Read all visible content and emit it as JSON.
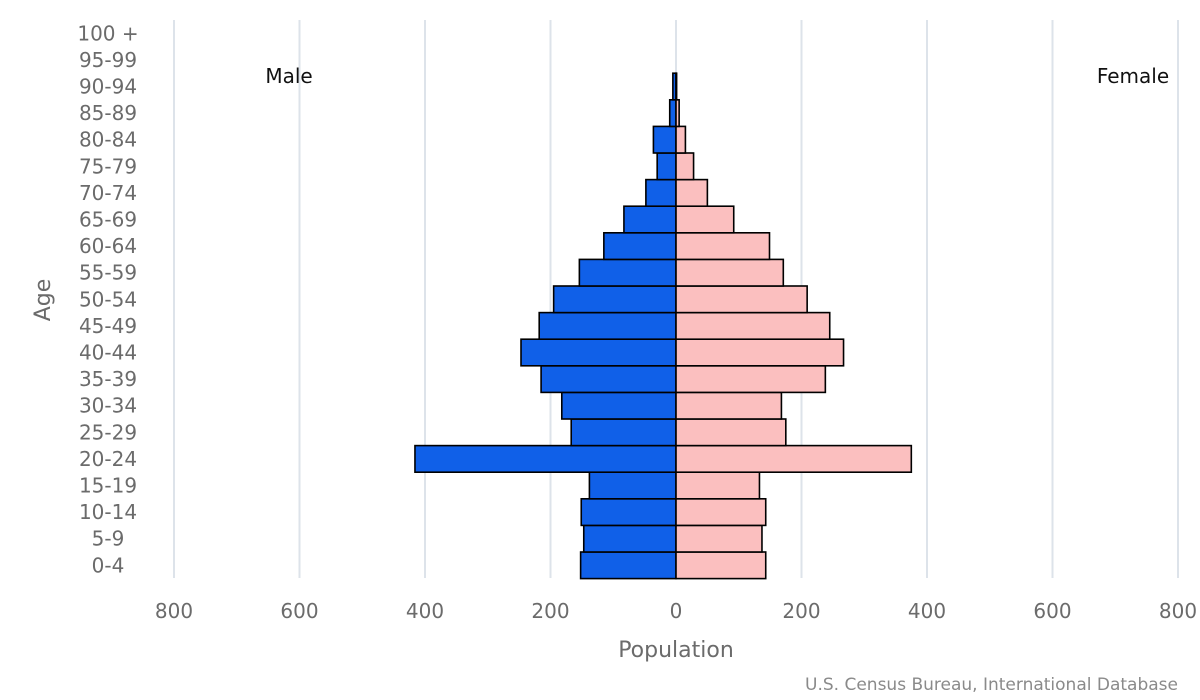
{
  "chart_data": {
    "type": "bar",
    "orientation": "horizontal",
    "categories": [
      "0-4",
      "5-9",
      "10-14",
      "15-19",
      "20-24",
      "25-29",
      "30-34",
      "35-39",
      "40-44",
      "45-49",
      "50-54",
      "55-59",
      "60-64",
      "65-69",
      "70-74",
      "75-79",
      "80-84",
      "85-89",
      "90-94",
      "95-99",
      "100 +"
    ],
    "series": [
      {
        "name": "Male",
        "values": [
          152,
          147,
          151,
          138,
          416,
          167,
          182,
          215,
          247,
          218,
          195,
          154,
          115,
          83,
          48,
          30,
          36,
          10,
          5,
          0,
          0
        ]
      },
      {
        "name": "Female",
        "values": [
          143,
          137,
          143,
          133,
          375,
          175,
          168,
          238,
          267,
          245,
          209,
          171,
          149,
          92,
          50,
          28,
          15,
          5,
          1,
          0,
          0
        ]
      }
    ],
    "xlabel": "Population",
    "ylabel": "Age",
    "xlim": [
      -800,
      800
    ],
    "x_ticks": [
      "800",
      "600",
      "400",
      "200",
      "0",
      "200",
      "400",
      "600",
      "800"
    ],
    "grid": true,
    "colors": {
      "Male": "#1060e8",
      "Female": "#fbbfbf",
      "outline": "#000000",
      "grid": "#dde3ea"
    },
    "annotations": {
      "male": "Male",
      "female": "Female"
    },
    "credit": "U.S. Census Bureau, International Database"
  }
}
